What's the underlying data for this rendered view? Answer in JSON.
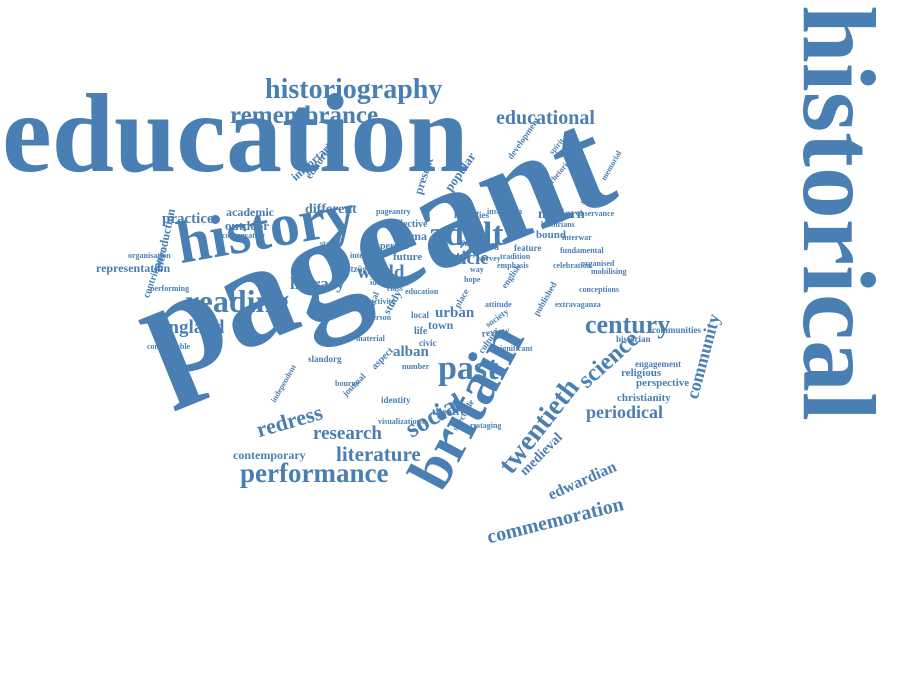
{
  "words": [
    "historical",
    "pageant",
    "education",
    "history",
    "britain",
    "adult",
    "historiography",
    "remembrance",
    "educational",
    "reading",
    "century",
    "past",
    "twentieth",
    "performance",
    "social",
    "science",
    "community",
    "literature",
    "research",
    "redress",
    "england",
    "commemoration",
    "periodical",
    "edwardian",
    "medieval",
    "article",
    "world",
    "literacy",
    "different",
    "modern",
    "practice",
    "academic",
    "outdoor",
    "representation",
    "introduction",
    "contribution",
    "drama",
    "future",
    "urban",
    "town",
    "alban",
    "perspective",
    "christianity",
    "religious",
    "communities",
    "engagement",
    "historian",
    "contemporary",
    "theatre",
    "identity",
    "journal",
    "aspect",
    "important",
    "editorial",
    "present",
    "popular",
    "spectacle",
    "restaging",
    "study",
    "review",
    "society",
    "life",
    "published",
    "local",
    "place",
    "culture",
    "significant",
    "considerable",
    "performing",
    "organisation",
    "festzüge",
    "internal",
    "person",
    "activity",
    "special",
    "edward",
    "feature",
    "period",
    "collective",
    "survey",
    "way",
    "tradition",
    "emphasis",
    "english",
    "development",
    "bound",
    "conservative",
    "identifies",
    "institution",
    "historians",
    "pageantry",
    "spirit",
    "rhetoric",
    "stalin",
    "independent",
    "number",
    "observance",
    "conceptions",
    "extravaganza",
    "civic",
    "organised",
    "memorial",
    "mobilising",
    "purpose",
    "slandorg",
    "bourne",
    "fundamental",
    "visualizations",
    "interwar",
    "idea",
    "attitude",
    "celebration",
    "political",
    "material",
    "class",
    "education",
    "state",
    "hope"
  ]
}
